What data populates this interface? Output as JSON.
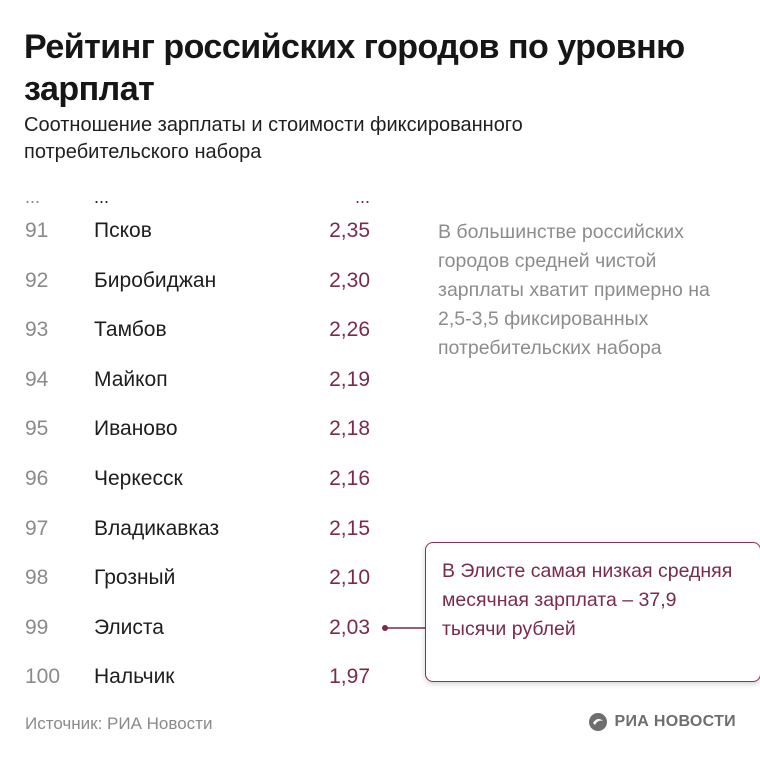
{
  "title": "Рейтинг российских городов по уровню зарплат",
  "subtitle": "Соотношение зарплаты и стоимости фиксированного потребительского набора",
  "chart_data": {
    "type": "table",
    "title": "Рейтинг российских городов по уровню зарплат",
    "subtitle": "Соотношение зарплаты и стоимости фиксированного потребительского набора",
    "ellipsis": "...",
    "columns": [
      "rank",
      "city",
      "ratio"
    ],
    "rows": [
      {
        "rank": "91",
        "city": "Псков",
        "value": "2,35"
      },
      {
        "rank": "92",
        "city": "Биробиджан",
        "value": "2,30"
      },
      {
        "rank": "93",
        "city": "Тамбов",
        "value": "2,26"
      },
      {
        "rank": "94",
        "city": "Майкоп",
        "value": "2,19"
      },
      {
        "rank": "95",
        "city": "Иваново",
        "value": "2,18"
      },
      {
        "rank": "96",
        "city": "Черкесск",
        "value": "2,16"
      },
      {
        "rank": "97",
        "city": "Владикавказ",
        "value": "2,15"
      },
      {
        "rank": "98",
        "city": "Грозный",
        "value": "2,10"
      },
      {
        "rank": "99",
        "city": "Элиста",
        "value": "2,03"
      },
      {
        "rank": "100",
        "city": "Нальчик",
        "value": "1,97"
      }
    ],
    "annotations": [
      "В большинстве российских городов средней чистой зарплаты хватит примерно на 2,5-3,5 фиксированных потребительских набора",
      "В Элисте самая низкая средняя месячная зарплата – 37,9 тысячи рублей"
    ],
    "highlight_row": 8
  },
  "note": "В большинстве российских городов средней чистой зарплаты хватит примерно на 2,5-3,5 фиксированных потребительских набора",
  "callout": "В Элисте самая низкая средняя месячная зарплата – 37,9 тысячи рублей",
  "source": "Источник: РИА Новости",
  "logo": "РИА НОВОСТИ",
  "colors": {
    "accent": "#7a2a4a",
    "muted": "#8a8a8a",
    "text": "#1d1d1d"
  }
}
